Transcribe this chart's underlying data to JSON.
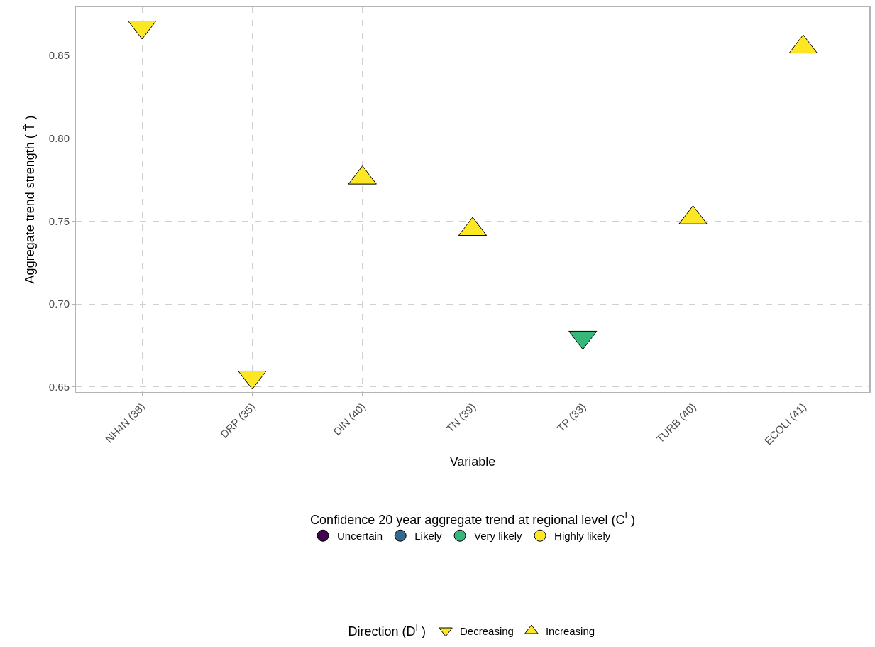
{
  "chart_data": {
    "type": "scatter",
    "xlabel": "Variable",
    "ylabel": "Aggregate trend strength ( T̂ )",
    "legend_title": [
      "Confidence 20 year aggregate trend at regional level (C$^{I}$ )",
      "Direction (D$^{I}$ )"
    ],
    "categories": [
      "NH4N (38)",
      "DRP (35)",
      "DIN (40)",
      "TN (39)",
      "TP (33)",
      "TURB (40)",
      "ECOLI (41)"
    ],
    "ylim": [
      0.647,
      0.879
    ],
    "yticks": [
      0.65,
      {
        "value": 0.7,
        "label": "0.70"
      },
      0.75,
      {
        "value": 0.8,
        "label": "0.80"
      },
      0.85
    ],
    "grid": true,
    "legend": "bottom",
    "series": [
      {
        "name": "Uncertain",
        "color": "#440154",
        "marker": "circle",
        "values": [
          null,
          null,
          null,
          null,
          null,
          null,
          null
        ]
      },
      {
        "name": "Likely",
        "color": "#31688e",
        "marker": "circle",
        "values": [
          null,
          null,
          null,
          null,
          null,
          null,
          null
        ]
      },
      {
        "name": "Very likely",
        "color": "#35b779",
        "marker": "circle",
        "values": [
          null,
          null,
          null,
          null,
          null,
          null,
          null
        ]
      },
      {
        "name": "Highly likely",
        "color": "#fde725",
        "marker": "circle",
        "values": [
          null,
          null,
          null,
          null,
          null,
          null,
          null
        ]
      },
      {
        "name": "Decreasing",
        "marker": "triangle-down",
        "colors": [
          "#fde725",
          "#fde725",
          null,
          null,
          "#35b779",
          null,
          null
        ],
        "values": [
          0.867,
          0.656,
          null,
          null,
          0.68,
          null,
          null
        ]
      },
      {
        "name": "Increasing",
        "marker": "triangle",
        "colors": [
          null,
          null,
          "#fde725",
          "#fde725",
          null,
          "#fde725",
          "#fde725"
        ],
        "values": [
          null,
          null,
          0.776,
          0.745,
          null,
          0.752,
          0.855
        ]
      }
    ]
  }
}
